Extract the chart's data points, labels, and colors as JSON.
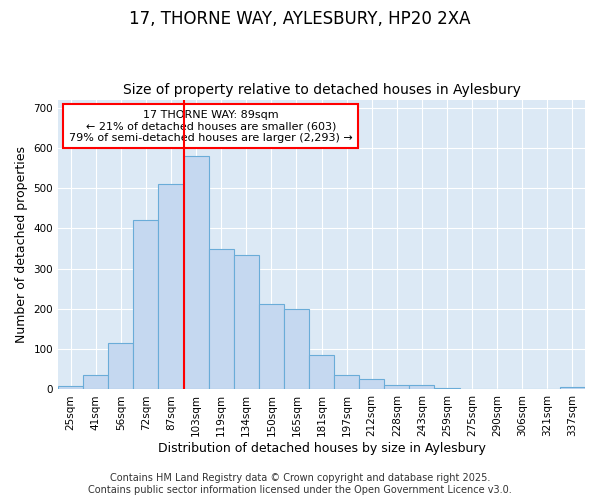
{
  "title1": "17, THORNE WAY, AYLESBURY, HP20 2XA",
  "title2": "Size of property relative to detached houses in Aylesbury",
  "xlabel": "Distribution of detached houses by size in Aylesbury",
  "ylabel": "Number of detached properties",
  "bar_labels": [
    "25sqm",
    "41sqm",
    "56sqm",
    "72sqm",
    "87sqm",
    "103sqm",
    "119sqm",
    "134sqm",
    "150sqm",
    "165sqm",
    "181sqm",
    "197sqm",
    "212sqm",
    "228sqm",
    "243sqm",
    "259sqm",
    "275sqm",
    "290sqm",
    "306sqm",
    "321sqm",
    "337sqm"
  ],
  "bar_values": [
    8,
    35,
    115,
    420,
    510,
    580,
    348,
    335,
    212,
    200,
    85,
    35,
    25,
    12,
    12,
    3,
    1,
    1,
    1,
    1,
    6
  ],
  "bar_color": "#c5d8f0",
  "bar_edge_color": "#6aacd8",
  "red_line_index": 4.5,
  "red_line_label": "17 THORNE WAY: 89sqm",
  "annotation_line2": "← 21% of detached houses are smaller (603)",
  "annotation_line3": "79% of semi-detached houses are larger (2,293) →",
  "annotation_box_color": "white",
  "annotation_box_edge_color": "red",
  "ylim": [
    0,
    720
  ],
  "yticks": [
    0,
    100,
    200,
    300,
    400,
    500,
    600,
    700
  ],
  "plot_bg_color": "#dce9f5",
  "fig_bg_color": "#ffffff",
  "grid_color": "#ffffff",
  "footer1": "Contains HM Land Registry data © Crown copyright and database right 2025.",
  "footer2": "Contains public sector information licensed under the Open Government Licence v3.0.",
  "title_fontsize": 12,
  "subtitle_fontsize": 10,
  "axis_label_fontsize": 9,
  "tick_fontsize": 7.5,
  "annotation_fontsize": 8,
  "footer_fontsize": 7
}
